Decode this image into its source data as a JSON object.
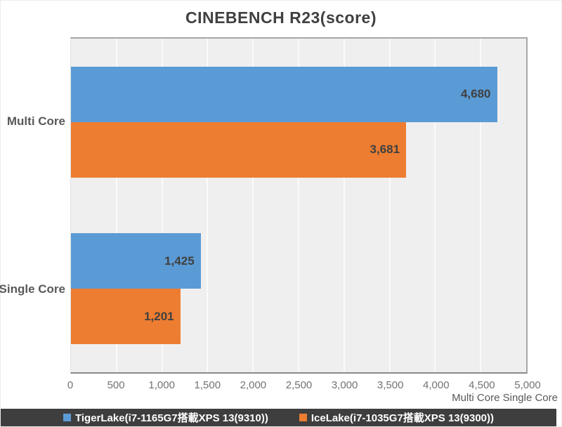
{
  "title": "CINEBENCH R23(score)",
  "axis_note": "Multi Core Single Core",
  "colors": {
    "tigerlake_blue": "#5B9BD5",
    "icelake_orange": "#ED7D31",
    "plot_background": "#EFEFEF",
    "gridline": "#FAFAFA",
    "legend_background": "#3E3E3E",
    "title_text": "#404040",
    "axis_text": "#595959"
  },
  "chart_data": {
    "type": "bar",
    "orientation": "horizontal",
    "title": "CINEBENCH R23(score)",
    "categories": [
      "Multi Core",
      "Single Core"
    ],
    "series": [
      {
        "name": "TigerLake(i7-1165G7搭載XPS 13(9310))",
        "color": "#5B9BD5",
        "values": [
          4680,
          1425
        ],
        "labels": [
          "4,680",
          "1,425"
        ]
      },
      {
        "name": "IceLake(i7-1035G7搭載XPS 13(9300))",
        "color": "#ED7D31",
        "values": [
          3681,
          1201
        ],
        "labels": [
          "3,681",
          "1,201"
        ]
      }
    ],
    "xlim": [
      0,
      5000
    ],
    "x_ticks": [
      "0",
      "500",
      "1,000",
      "1,500",
      "2,000",
      "2,500",
      "3,000",
      "3,500",
      "4,000",
      "4,500",
      "5,000"
    ],
    "grid": true,
    "legend_position": "bottom",
    "data_labels": "inside-end"
  }
}
